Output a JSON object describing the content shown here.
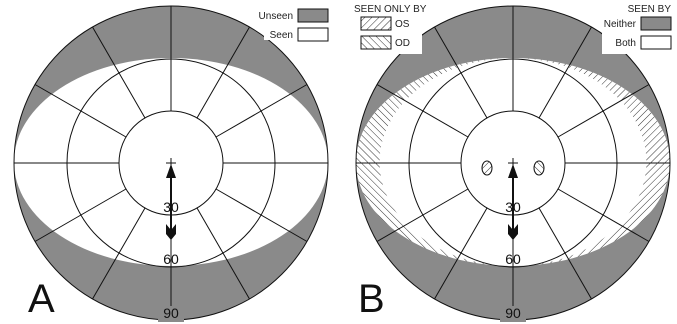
{
  "panel_a": {
    "letter": "A",
    "legend": {
      "unseen_label": "Unseen",
      "seen_label": "Seen"
    },
    "ring_labels": [
      "30",
      "60",
      "90"
    ]
  },
  "panel_b": {
    "letter": "B",
    "legend_left": {
      "title": "SEEN ONLY BY",
      "os_label": "OS",
      "od_label": "OD"
    },
    "legend_right": {
      "title": "SEEN BY",
      "neither_label": "Neither",
      "both_label": "Both"
    },
    "ring_labels": [
      "30",
      "60",
      "90"
    ]
  },
  "colors": {
    "unseen": "#8a8a8a",
    "seen": "#ffffff",
    "line": "#111111"
  }
}
